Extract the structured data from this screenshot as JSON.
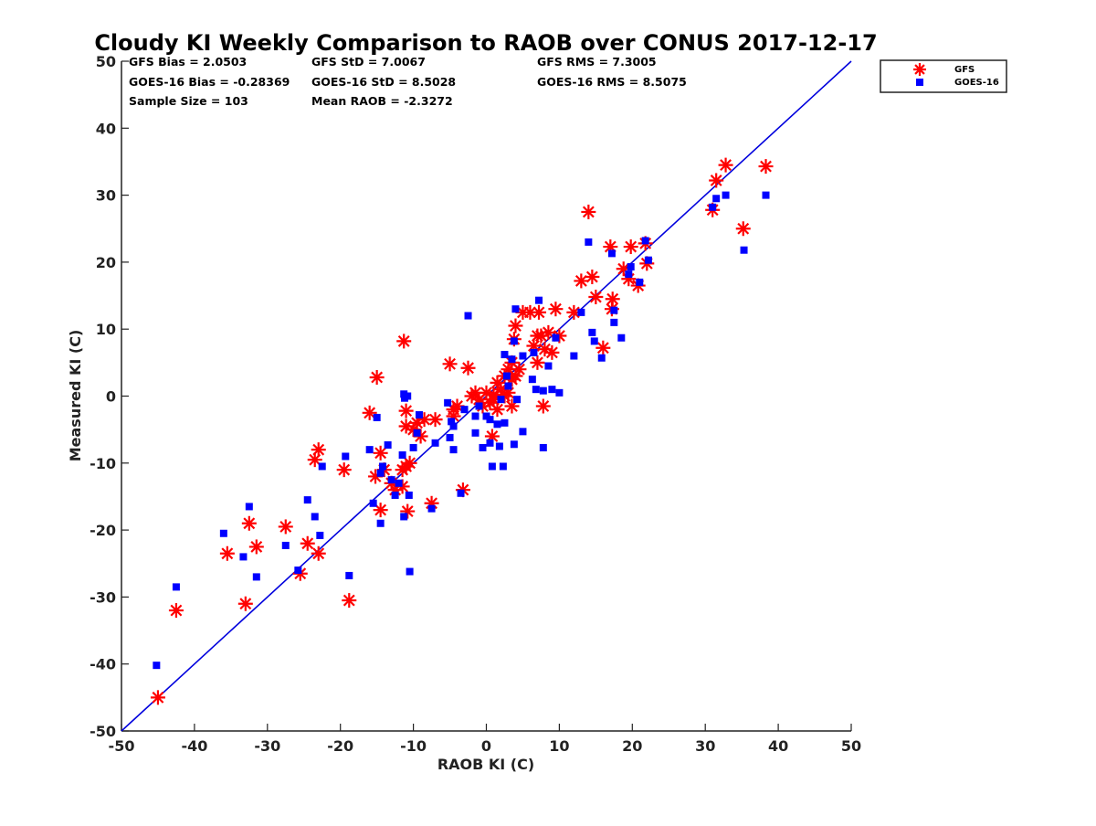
{
  "chart_data": {
    "type": "scatter",
    "title": "Cloudy KI Weekly Comparison to RAOB over CONUS 2017-12-17",
    "xlabel": "RAOB KI (C)",
    "ylabel": "Measured KI (C)",
    "xlim": [
      -50,
      50
    ],
    "ylim": [
      -50,
      50
    ],
    "xticks": [
      -50,
      -40,
      -30,
      -20,
      -10,
      0,
      10,
      20,
      30,
      40,
      50
    ],
    "yticks": [
      -50,
      -40,
      -30,
      -20,
      -10,
      0,
      10,
      20,
      30,
      40,
      50
    ],
    "xtick_labels": [
      "-50",
      "-40",
      "-30",
      "-20",
      "-10",
      "0",
      "10",
      "20",
      "30",
      "40",
      "50"
    ],
    "ytick_labels": [
      "-50",
      "-40",
      "-30",
      "-20",
      "-10",
      "0",
      "10",
      "20",
      "30",
      "40",
      "50"
    ],
    "grid": false,
    "legend_position": "top-right-outside",
    "reference_line": {
      "x": [
        -50,
        50
      ],
      "y": [
        -50,
        50
      ],
      "color": "#0000dd"
    },
    "stats": [
      [
        "GFS Bias = 2.0503",
        "GFS StD = 7.0067",
        "GFS RMS = 7.3005"
      ],
      [
        "GOES-16 Bias = -0.28369",
        "GOES-16 StD = 8.5028",
        "GOES-16 RMS = 8.5075"
      ],
      [
        "Sample Size = 103",
        "Mean RAOB = -2.3272"
      ]
    ],
    "series": [
      {
        "name": "GFS",
        "marker": "asterisk",
        "color": "#ff0000",
        "points": [
          [
            -45,
            -45
          ],
          [
            -42.5,
            -32
          ],
          [
            -35.5,
            -23.5
          ],
          [
            -33,
            -31
          ],
          [
            -32.5,
            -19
          ],
          [
            -31.5,
            -22.5
          ],
          [
            -27.5,
            -19.5
          ],
          [
            -25.5,
            -26.5
          ],
          [
            -24.5,
            -22
          ],
          [
            -23.5,
            -9.5
          ],
          [
            -23,
            -8
          ],
          [
            -23,
            -23.5
          ],
          [
            -19.5,
            -11
          ],
          [
            -18.8,
            -30.5
          ],
          [
            -16,
            -2.5
          ],
          [
            -15.2,
            -12
          ],
          [
            -15,
            2.8
          ],
          [
            -14.5,
            -8.5
          ],
          [
            -14.5,
            -17
          ],
          [
            -14,
            -11
          ],
          [
            -13,
            -13
          ],
          [
            -12.5,
            -14
          ],
          [
            -11.5,
            -13.5
          ],
          [
            -11.5,
            -11
          ],
          [
            -11.3,
            8.2
          ],
          [
            -11,
            -2.2
          ],
          [
            -11,
            -4.5
          ],
          [
            -11,
            -10.5
          ],
          [
            -10.8,
            -17.2
          ],
          [
            -10.5,
            -10
          ],
          [
            -10,
            -5
          ],
          [
            -9.5,
            -4
          ],
          [
            -9,
            -6
          ],
          [
            -8.5,
            -3.5
          ],
          [
            -7.5,
            -16
          ],
          [
            -7,
            -3.5
          ],
          [
            -5,
            4.8
          ],
          [
            -4.5,
            -2
          ],
          [
            -4.5,
            -3
          ],
          [
            -4,
            -1.5
          ],
          [
            -3.2,
            -14
          ],
          [
            -2.5,
            4.2
          ],
          [
            -2,
            0
          ],
          [
            -1.5,
            0.5
          ],
          [
            -1,
            -0.5
          ],
          [
            -0.5,
            -1.5
          ],
          [
            0,
            0.5
          ],
          [
            0.5,
            -1
          ],
          [
            0.8,
            -6
          ],
          [
            1,
            -0.5
          ],
          [
            1,
            0.2
          ],
          [
            1.5,
            2
          ],
          [
            1.5,
            -2
          ],
          [
            2,
            1
          ],
          [
            2.5,
            3
          ],
          [
            2.5,
            0
          ],
          [
            3,
            0.5
          ],
          [
            3,
            4
          ],
          [
            3.5,
            2.5
          ],
          [
            3.5,
            5
          ],
          [
            3.5,
            -1.5
          ],
          [
            3.8,
            8.5
          ],
          [
            4,
            3
          ],
          [
            4,
            10.5
          ],
          [
            4.5,
            4
          ],
          [
            5,
            12.5
          ],
          [
            6,
            12.5
          ],
          [
            6.5,
            7.5
          ],
          [
            7,
            9
          ],
          [
            7,
            5
          ],
          [
            7.2,
            12.5
          ],
          [
            7.5,
            9
          ],
          [
            7.8,
            -1.5
          ],
          [
            8,
            7
          ],
          [
            8.5,
            9.5
          ],
          [
            9,
            6.5
          ],
          [
            9.5,
            13
          ],
          [
            10,
            9
          ],
          [
            12,
            12.5
          ],
          [
            13,
            17.2
          ],
          [
            14,
            27.5
          ],
          [
            14.5,
            17.8
          ],
          [
            15,
            14.8
          ],
          [
            16,
            7.2
          ],
          [
            17,
            22.3
          ],
          [
            17.2,
            13
          ],
          [
            17.3,
            14.5
          ],
          [
            18.8,
            19
          ],
          [
            19.5,
            17.5
          ],
          [
            19.8,
            22.3
          ],
          [
            20.8,
            16.5
          ],
          [
            21.8,
            22.8
          ],
          [
            22,
            19.8
          ],
          [
            31,
            27.8
          ],
          [
            31.5,
            32.2
          ],
          [
            32.8,
            34.5
          ],
          [
            35.2,
            25
          ],
          [
            38.3,
            34.3
          ]
        ]
      },
      {
        "name": "GOES-16",
        "marker": "square",
        "color": "#0000ff",
        "points": [
          [
            -45.2,
            -40.2
          ],
          [
            -42.5,
            -28.5
          ],
          [
            -36,
            -20.5
          ],
          [
            -33.3,
            -24
          ],
          [
            -32.5,
            -16.5
          ],
          [
            -31.5,
            -27
          ],
          [
            -27.5,
            -22.3
          ],
          [
            -25.8,
            -26
          ],
          [
            -24.5,
            -15.5
          ],
          [
            -23.5,
            -18
          ],
          [
            -22.8,
            -20.8
          ],
          [
            -22.5,
            -10.5
          ],
          [
            -19.3,
            -9
          ],
          [
            -18.8,
            -26.8
          ],
          [
            -16,
            -8
          ],
          [
            -15.5,
            -16
          ],
          [
            -15,
            -3.2
          ],
          [
            -14.5,
            -19
          ],
          [
            -14.5,
            -11.5
          ],
          [
            -14.2,
            -10.5
          ],
          [
            -13.5,
            -7.3
          ],
          [
            -13,
            -12.5
          ],
          [
            -12.5,
            -14.8
          ],
          [
            -12,
            -13
          ],
          [
            -11.5,
            -8.8
          ],
          [
            -11.3,
            0.3
          ],
          [
            -11.3,
            -18
          ],
          [
            -11.2,
            -0.3
          ],
          [
            -10.8,
            0
          ],
          [
            -10.6,
            -14.8
          ],
          [
            -10.5,
            -26.2
          ],
          [
            -10,
            -7.7
          ],
          [
            -9.5,
            -5.5
          ],
          [
            -9.2,
            -2.8
          ],
          [
            -7.5,
            -16.8
          ],
          [
            -7,
            -7
          ],
          [
            -5.3,
            -1
          ],
          [
            -5,
            -6.2
          ],
          [
            -4.8,
            -3.8
          ],
          [
            -4.5,
            -4.5
          ],
          [
            -4.5,
            -8
          ],
          [
            -3.5,
            -14.5
          ],
          [
            -3,
            -2
          ],
          [
            -2.5,
            12
          ],
          [
            -1.5,
            -5.5
          ],
          [
            -1.5,
            -3
          ],
          [
            -1,
            -1.5
          ],
          [
            -0.5,
            -7.7
          ],
          [
            0,
            -3
          ],
          [
            0.5,
            -3.5
          ],
          [
            0.5,
            -7
          ],
          [
            0.8,
            -10.5
          ],
          [
            1.5,
            -4.2
          ],
          [
            1.8,
            -7.5
          ],
          [
            2,
            -0.5
          ],
          [
            2.3,
            -10.5
          ],
          [
            2.5,
            6.2
          ],
          [
            2.5,
            -4
          ],
          [
            2.8,
            3
          ],
          [
            3,
            1.5
          ],
          [
            3.5,
            5.5
          ],
          [
            3.8,
            -7.2
          ],
          [
            3.8,
            8.2
          ],
          [
            4,
            13
          ],
          [
            4.2,
            -0.5
          ],
          [
            5,
            -5.3
          ],
          [
            5,
            6
          ],
          [
            6.3,
            2.5
          ],
          [
            6.5,
            6.5
          ],
          [
            6.8,
            1
          ],
          [
            7.2,
            14.3
          ],
          [
            7.8,
            -7.7
          ],
          [
            7.8,
            0.8
          ],
          [
            8.5,
            4.5
          ],
          [
            9,
            1
          ],
          [
            9.5,
            8.7
          ],
          [
            10,
            0.5
          ],
          [
            12,
            6
          ],
          [
            13,
            12.5
          ],
          [
            14,
            23
          ],
          [
            14.5,
            9.5
          ],
          [
            14.8,
            8.2
          ],
          [
            15.8,
            5.7
          ],
          [
            17.2,
            21.3
          ],
          [
            17.5,
            11
          ],
          [
            17.5,
            12.8
          ],
          [
            18.5,
            8.7
          ],
          [
            19.5,
            18.2
          ],
          [
            19.8,
            19.3
          ],
          [
            21,
            17
          ],
          [
            21.8,
            23.2
          ],
          [
            22.2,
            20.3
          ],
          [
            31,
            28.2
          ],
          [
            31.5,
            29.5
          ],
          [
            32.8,
            30
          ],
          [
            35.3,
            21.8
          ],
          [
            38.3,
            30
          ]
        ]
      }
    ]
  }
}
